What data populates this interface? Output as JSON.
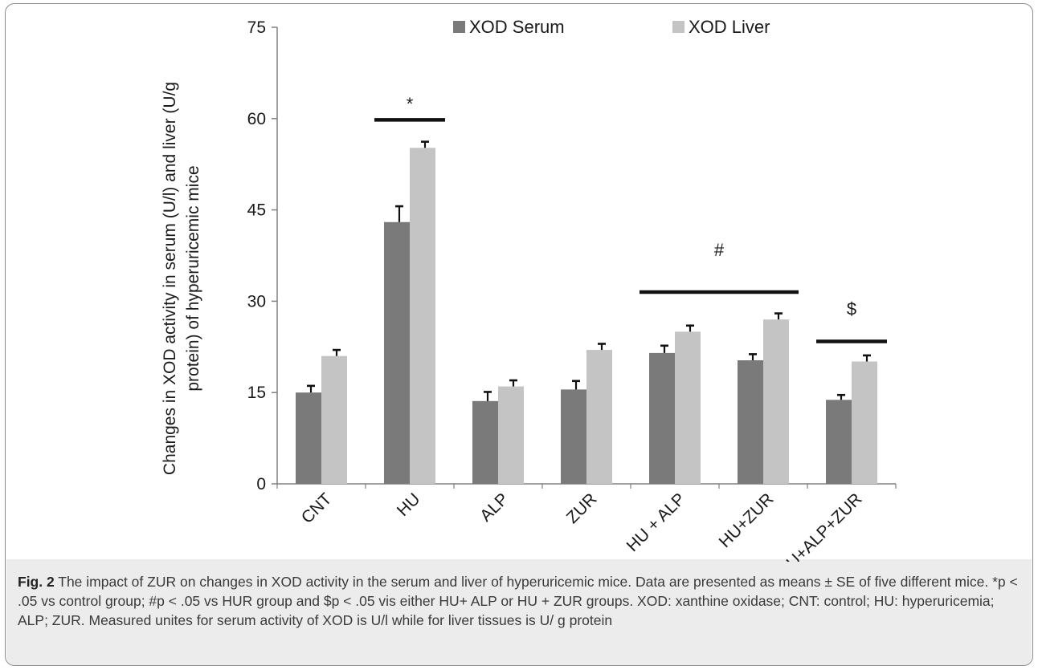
{
  "chart_data": {
    "type": "bar",
    "categories": [
      "CNT",
      "HU",
      "ALP",
      "ZUR",
      "HU + ALP",
      "HU+ZUR",
      "HU+ALP+ZUR"
    ],
    "series": [
      {
        "name": "XOD Serum",
        "color": "#7a7a7a",
        "values": [
          15.0,
          43.0,
          13.6,
          15.5,
          21.5,
          20.3,
          13.8
        ],
        "errors": [
          1.1,
          2.6,
          1.5,
          1.4,
          1.2,
          1.0,
          0.8
        ]
      },
      {
        "name": "XOD Liver",
        "color": "#c4c4c4",
        "values": [
          21.0,
          55.2,
          16.0,
          22.0,
          25.0,
          27.0,
          20.1
        ],
        "errors": [
          1.0,
          1.0,
          1.0,
          1.0,
          1.0,
          1.0,
          1.0
        ]
      }
    ],
    "ylim": [
      0,
      75
    ],
    "yticks": [
      0,
      15,
      30,
      45,
      60,
      75
    ],
    "ylabel_line1": "Changes in XOD activity in serum (U/l) and liver (U/g",
    "ylabel_line2": "protein)  of  hyperuricemic mice",
    "xlabel": "",
    "legend_position": "top",
    "grid": false,
    "annotations": [
      {
        "text": "*",
        "y_line": 59.8,
        "from_category": "HU",
        "to_category": "HU",
        "y_text": 62.5
      },
      {
        "text": "#",
        "y_line": 31.5,
        "from_category": "HU + ALP",
        "to_category": "HU+ZUR",
        "y_text": 38.5
      },
      {
        "text": "$",
        "y_line": 23.4,
        "from_category": "HU+ALP+ZUR",
        "to_category": "HU+ALP+ZUR",
        "y_text": 28.8
      }
    ]
  },
  "caption": {
    "label": "Fig. 2",
    "text": "The impact of ZUR on changes in XOD activity in the serum and liver of hyperuricemic mice. Data are presented as means ± SE of five different mice. *p < .05 vs control group; #p < .05 vs HUR group and $p < .05 vis either HU+ ALP or HU + ZUR groups. XOD: xanthine oxidase; CNT: control; HU: hyperuricemia; ALP; ZUR. Measured unites for serum activity of XOD is U/l while for liver tissues is U/ g protein"
  }
}
